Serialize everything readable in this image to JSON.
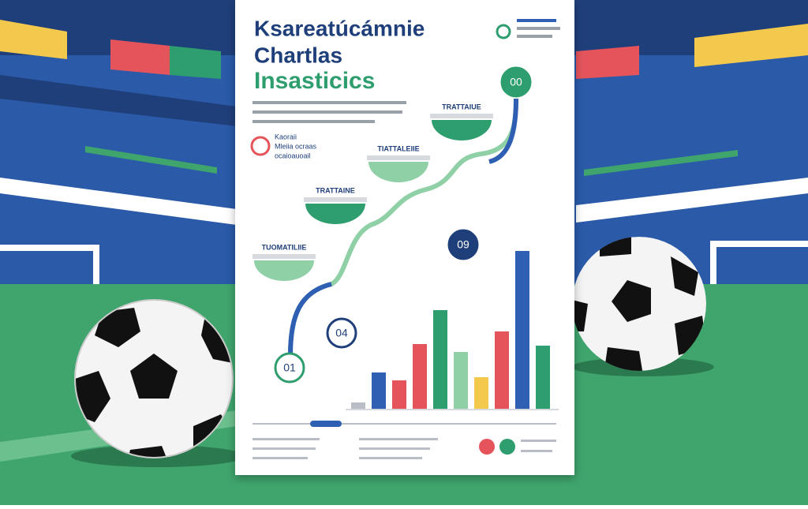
{
  "poster": {
    "title": [
      "Ksareatúcámnie",
      "Chartlas",
      "Insasticics"
    ],
    "side_note": [
      "Kaoraii",
      "Mleiia ocraas",
      "ocaioauoail"
    ],
    "stages": [
      "TUOMATILIIE",
      "TRATTAINE",
      "TIATTALEIIE",
      "TRATTAIUE"
    ],
    "badges": [
      "01",
      "04",
      "09",
      "00"
    ]
  },
  "chart_data": {
    "type": "bar",
    "values": [
      8,
      46,
      36,
      82,
      125,
      72,
      40,
      98,
      200,
      80
    ],
    "colors": [
      "#b9bec6",
      "#2f5fb3",
      "#e5545b",
      "#e5545b",
      "#2f9e6e",
      "#8fd0a6",
      "#f2c94c",
      "#e5545b",
      "#2f5fb3",
      "#2f9e6e"
    ]
  }
}
